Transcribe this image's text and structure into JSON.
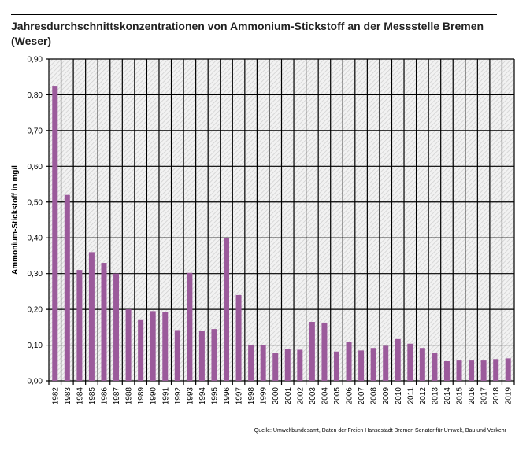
{
  "chart_data": {
    "type": "bar",
    "title": "Jahresdurchschnittskonzentrationen von Ammonium-Stickstoff an der Messstelle Bremen (Weser)",
    "xlabel": "",
    "ylabel": "Ammonium-Stickstoff in mg/l",
    "ylim": [
      0,
      0.9
    ],
    "yticks": [
      "0,00",
      "0,10",
      "0,20",
      "0,30",
      "0,40",
      "0,50",
      "0,60",
      "0,70",
      "0,80",
      "0,90"
    ],
    "grid": true,
    "bar_color": "#9b5a9b",
    "categories": [
      "1982",
      "1983",
      "1984",
      "1985",
      "1986",
      "1987",
      "1988",
      "1989",
      "1990",
      "1991",
      "1992",
      "1993",
      "1994",
      "1995",
      "1996",
      "1997",
      "1998",
      "1999",
      "2000",
      "2001",
      "2002",
      "2003",
      "2004",
      "2005",
      "2006",
      "2007",
      "2008",
      "2009",
      "2010",
      "2011",
      "2012",
      "2013",
      "2014",
      "2015",
      "2016",
      "2017",
      "2018",
      "2019"
    ],
    "values": [
      0.825,
      0.52,
      0.31,
      0.36,
      0.33,
      0.3,
      0.2,
      0.17,
      0.195,
      0.193,
      0.142,
      0.302,
      0.14,
      0.145,
      0.4,
      0.24,
      0.1,
      0.1,
      0.077,
      0.09,
      0.087,
      0.165,
      0.163,
      0.082,
      0.11,
      0.085,
      0.092,
      0.098,
      0.117,
      0.104,
      0.092,
      0.077,
      0.055,
      0.057,
      0.057,
      0.057,
      0.061,
      0.063
    ]
  },
  "source": "Quelle: Umweltbundesamt, Daten der Freien Hansestadt Bremen Senator für Umwelt, Bau und Verkehr"
}
